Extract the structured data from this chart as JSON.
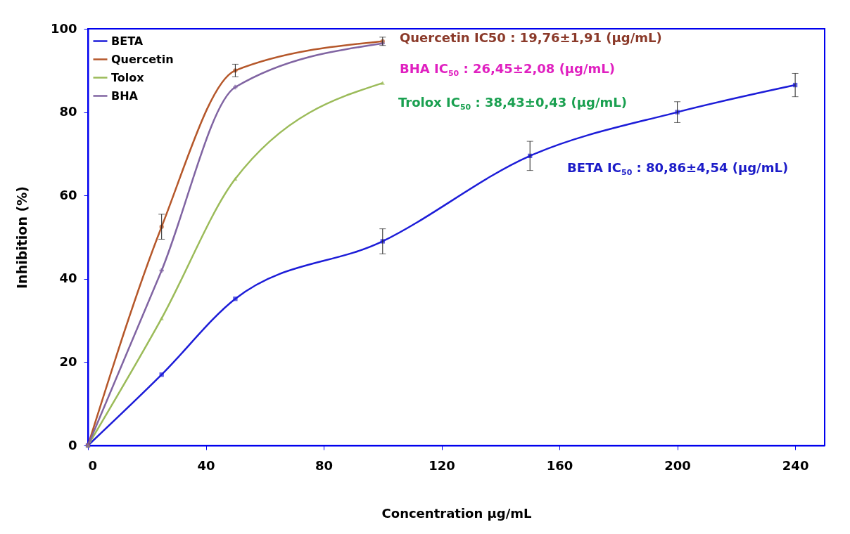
{
  "chart_data": {
    "type": "line",
    "xlabel": "Concentration µg/mL",
    "ylabel": "Inhibition (%)",
    "xlim": [
      0,
      250
    ],
    "xticks": [
      0,
      40,
      80,
      120,
      160,
      200,
      240
    ],
    "ylim": [
      0,
      100
    ],
    "yticks": [
      0,
      20,
      40,
      60,
      80,
      100
    ],
    "grid": false,
    "legend": "top left",
    "line_style": "solid",
    "series": [
      {
        "name": "BETA",
        "color": "#1c1cd8",
        "marker": "square",
        "x": [
          0,
          25,
          50,
          100,
          150,
          200,
          240
        ],
        "values": [
          0,
          17,
          35.2,
          49,
          69.5,
          80,
          86.5
        ],
        "errors": [
          null,
          null,
          null,
          3,
          3.5,
          2.5,
          2.8
        ]
      },
      {
        "name": "Quercetin",
        "color": "#b5572a",
        "marker": "circle",
        "x": [
          0,
          25,
          50,
          100
        ],
        "values": [
          0,
          52.5,
          90,
          97
        ],
        "errors": [
          null,
          3,
          1.5,
          1
        ]
      },
      {
        "name": "Tolox",
        "color": "#9bbb59",
        "marker": "triangle",
        "x": [
          0,
          25,
          50,
          100
        ],
        "values": [
          0,
          30.5,
          64,
          87
        ]
      },
      {
        "name": "BHA",
        "color": "#8064a2",
        "marker": "cross",
        "x": [
          0,
          25,
          50,
          100
        ],
        "values": [
          0,
          42,
          86,
          96.5
        ]
      }
    ],
    "annotations": [
      "Quercetin IC50 : 19,76±1,91 (µg/mL)",
      "BHA IC$_{50}$ : 26,45±2,08 (µg/mL)",
      "Trolox IC$_{50}$ : 38,43±0,43 (µg/mL)",
      "BETA IC$_{50}$ : 80,86±4,54 (µg/mL)"
    ]
  }
}
